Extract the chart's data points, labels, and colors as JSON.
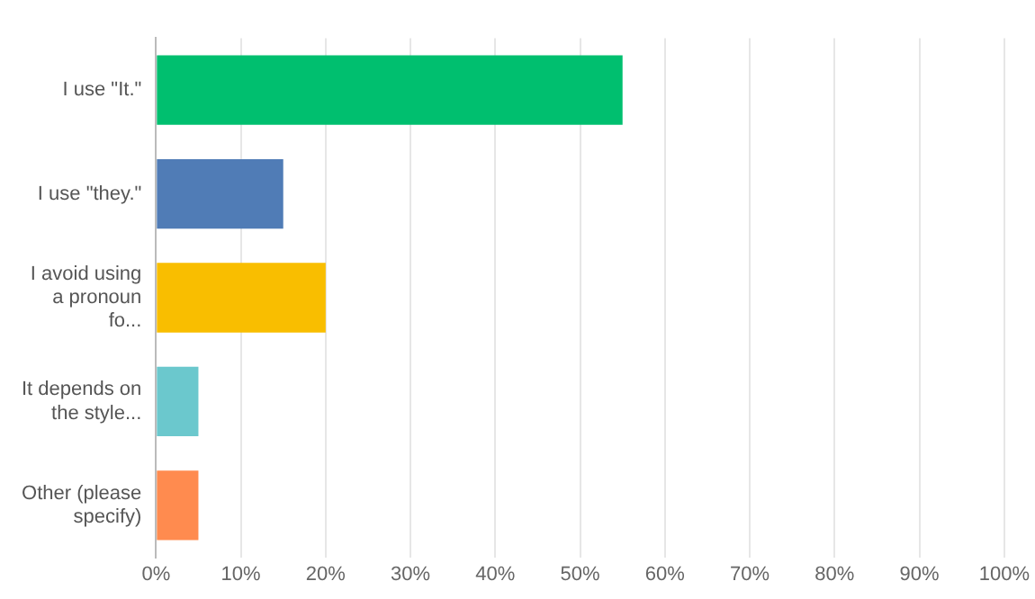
{
  "chart_data": {
    "type": "bar",
    "orientation": "horizontal",
    "categories": [
      "I use \"It.\"",
      "I use \"they.\"",
      "I avoid using a pronoun fo...",
      "It depends on the style...",
      "Other (please specify)"
    ],
    "values": [
      55,
      15,
      20,
      5,
      5
    ],
    "colors": [
      "#00bf6f",
      "#507cb6",
      "#f9be00",
      "#6bc8cd",
      "#ff8b4f"
    ],
    "xlim": [
      0,
      100
    ],
    "xticks": [
      {
        "value": 0,
        "label": "0%"
      },
      {
        "value": 10,
        "label": "10%"
      },
      {
        "value": 20,
        "label": "20%"
      },
      {
        "value": 30,
        "label": "30%"
      },
      {
        "value": 40,
        "label": "40%"
      },
      {
        "value": 50,
        "label": "50%"
      },
      {
        "value": 60,
        "label": "60%"
      },
      {
        "value": 70,
        "label": "70%"
      },
      {
        "value": 80,
        "label": "80%"
      },
      {
        "value": 90,
        "label": "90%"
      },
      {
        "value": 100,
        "label": "100%"
      }
    ],
    "grid": "x"
  }
}
